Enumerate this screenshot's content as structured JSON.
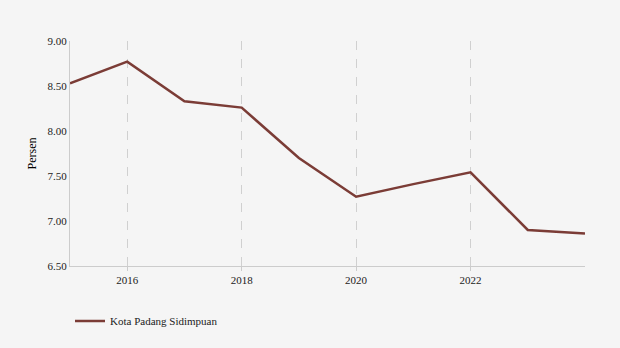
{
  "chart_data": {
    "type": "line",
    "y_label": "Persen",
    "x": [
      2015,
      2016,
      2017,
      2018,
      2019,
      2020,
      2021,
      2022,
      2023,
      2024
    ],
    "series": [
      {
        "name": "Kota Padang Sidimpuan",
        "color": "#7b3c36",
        "values": [
          8.53,
          8.77,
          8.33,
          8.26,
          7.7,
          7.27,
          7.41,
          7.54,
          6.9,
          6.86
        ]
      }
    ],
    "xlim": [
      2015,
      2024
    ],
    "xticks": [
      2016,
      2018,
      2020,
      2022
    ],
    "ylim": [
      6.5,
      9.0
    ],
    "yticks": [
      {
        "value": 6.5,
        "label": "6.50"
      },
      {
        "value": 7.0,
        "label": "7.00"
      },
      {
        "value": 7.5,
        "label": "7.50"
      },
      {
        "value": 8.0,
        "label": "8.00"
      },
      {
        "value": 8.5,
        "label": "8.50"
      },
      {
        "value": 9.0,
        "label": "9.00"
      }
    ],
    "grid": true,
    "legend": "bottom-left"
  }
}
